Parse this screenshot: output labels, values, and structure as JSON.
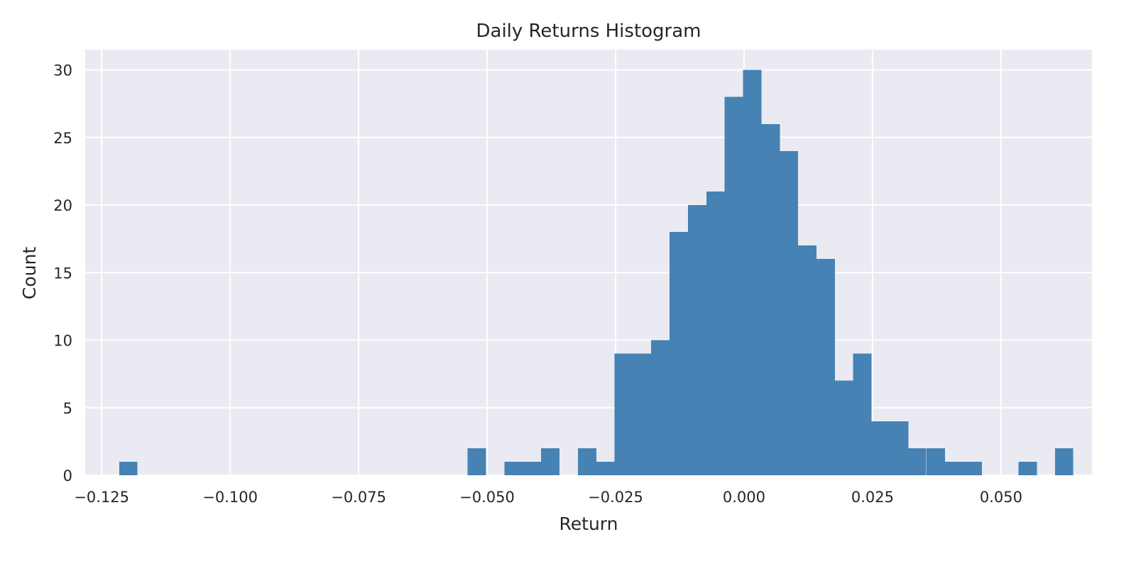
{
  "chart_data": {
    "type": "bar",
    "title": "Daily Returns Histogram",
    "xlabel": "Return",
    "ylabel": "Count",
    "xlim": [
      -0.1282,
      0.0677
    ],
    "ylim": [
      0,
      31.5
    ],
    "grid": true,
    "bin_width": 0.003571,
    "x_ticks": [
      {
        "value": -0.125,
        "label": "−0.125"
      },
      {
        "value": -0.1,
        "label": "−0.100"
      },
      {
        "value": -0.075,
        "label": "−0.075"
      },
      {
        "value": -0.05,
        "label": "−0.050"
      },
      {
        "value": -0.025,
        "label": "−0.025"
      },
      {
        "value": 0.0,
        "label": "0.000"
      },
      {
        "value": 0.025,
        "label": "0.025"
      },
      {
        "value": 0.05,
        "label": "0.050"
      }
    ],
    "y_ticks": [
      {
        "value": 0,
        "label": "0"
      },
      {
        "value": 5,
        "label": "5"
      },
      {
        "value": 10,
        "label": "10"
      },
      {
        "value": 15,
        "label": "15"
      },
      {
        "value": 20,
        "label": "20"
      },
      {
        "value": 25,
        "label": "25"
      },
      {
        "value": 30,
        "label": "30"
      }
    ],
    "bins": [
      {
        "x0": -0.1216,
        "count": 1
      },
      {
        "x0": -0.0538,
        "count": 2
      },
      {
        "x0": -0.0466,
        "count": 1
      },
      {
        "x0": -0.0431,
        "count": 1
      },
      {
        "x0": -0.0395,
        "count": 2
      },
      {
        "x0": -0.0323,
        "count": 2
      },
      {
        "x0": -0.0288,
        "count": 1
      },
      {
        "x0": -0.0252,
        "count": 9
      },
      {
        "x0": -0.0216,
        "count": 9
      },
      {
        "x0": -0.0181,
        "count": 10
      },
      {
        "x0": -0.0145,
        "count": 18
      },
      {
        "x0": -0.0109,
        "count": 20
      },
      {
        "x0": -0.0073,
        "count": 21
      },
      {
        "x0": -0.0038,
        "count": 28
      },
      {
        "x0": -0.0002,
        "count": 30
      },
      {
        "x0": 0.0034,
        "count": 26
      },
      {
        "x0": 0.0069,
        "count": 24
      },
      {
        "x0": 0.0105,
        "count": 17
      },
      {
        "x0": 0.0141,
        "count": 16
      },
      {
        "x0": 0.0177,
        "count": 7
      },
      {
        "x0": 0.0212,
        "count": 9
      },
      {
        "x0": 0.0248,
        "count": 4
      },
      {
        "x0": 0.0284,
        "count": 4
      },
      {
        "x0": 0.0319,
        "count": 2
      },
      {
        "x0": 0.0355,
        "count": 2
      },
      {
        "x0": 0.0391,
        "count": 1
      },
      {
        "x0": 0.0427,
        "count": 1
      },
      {
        "x0": 0.0534,
        "count": 1
      },
      {
        "x0": 0.0605,
        "count": 2
      }
    ],
    "colors": {
      "bar": "#4682b4",
      "plot_background": "#eaeaf2",
      "grid": "#ffffff"
    }
  }
}
